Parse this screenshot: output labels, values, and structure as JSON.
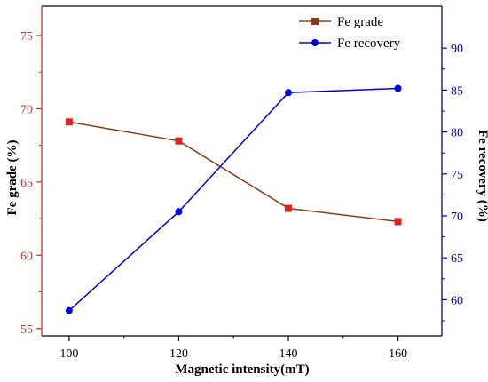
{
  "chart_data": {
    "type": "line",
    "xlabel": "Magnetic intensity(mT)",
    "x": [
      100,
      120,
      140,
      160
    ],
    "xlim": [
      95,
      168
    ],
    "xticks": [
      100,
      120,
      140,
      160
    ],
    "xtick_labels": [
      "100",
      "120",
      "140",
      "160"
    ],
    "y_left": {
      "label": "Fe grade (%)",
      "lim": [
        54.5,
        77
      ],
      "ticks": [
        55,
        60,
        65,
        70,
        75
      ],
      "tick_labels": [
        "55",
        "60",
        "65",
        "70",
        "75"
      ],
      "color": "#c0392b"
    },
    "y_right": {
      "label": "Fe recovery (%)",
      "lim": [
        55.7,
        95
      ],
      "ticks": [
        60,
        65,
        70,
        75,
        80,
        85,
        90
      ],
      "tick_labels": [
        "60",
        "65",
        "70",
        "75",
        "80",
        "85",
        "90"
      ],
      "color": "#0000cc"
    },
    "series": [
      {
        "name": "Fe grade",
        "axis": "left",
        "values": [
          69.1,
          67.8,
          63.2,
          62.3
        ],
        "line_color": "#8b3a14",
        "marker": "square",
        "marker_color": "#e0201a"
      },
      {
        "name": "Fe recovery",
        "axis": "right",
        "values": [
          58.7,
          70.5,
          84.7,
          85.2
        ],
        "line_color": "#0000e0",
        "marker": "circle",
        "marker_color": "#0000e0"
      }
    ],
    "legend_position": "top-right",
    "grid": false
  }
}
